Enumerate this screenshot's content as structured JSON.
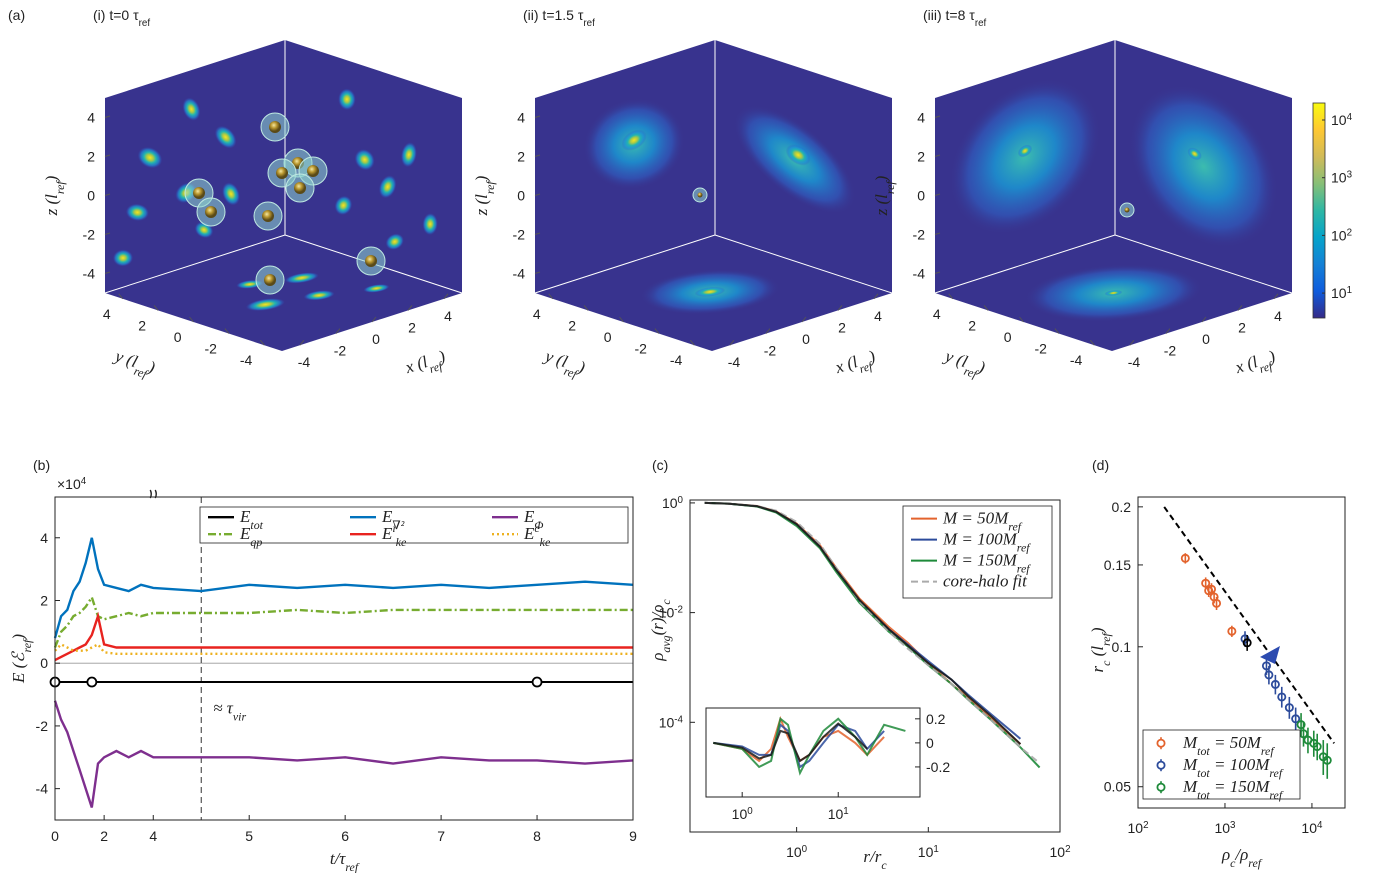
{
  "chart_data": [
    {
      "type": "volume",
      "panel_label": "(a)",
      "title": "(i) t=0  τ_{ref}",
      "face_color": "#38338e",
      "xlabel": "x (l_{ref})",
      "ylabel": "y (l_{ref})",
      "zlabel": "z (l_{ref})",
      "xlim": [
        -5,
        5
      ],
      "ylim": [
        -5,
        5
      ],
      "zlim": [
        -5,
        5
      ],
      "xticks": [
        -4,
        -2,
        0,
        2,
        4
      ],
      "yticks": [
        -4,
        -2,
        0,
        2,
        4
      ],
      "zticks": [
        -4,
        -2,
        0,
        2,
        4
      ]
    },
    {
      "type": "volume",
      "title": "(ii) t=1.5  τ_{ref}",
      "face_color": "#38338e",
      "xlabel": "x (l_{ref})",
      "ylabel": "y (l_{ref})",
      "zlabel": "z (l_{ref})",
      "xlim": [
        -5,
        5
      ],
      "ylim": [
        -5,
        5
      ],
      "zlim": [
        -5,
        5
      ],
      "xticks": [
        -4,
        -2,
        0,
        2,
        4
      ],
      "yticks": [
        -4,
        -2,
        0,
        2,
        4
      ],
      "zticks": [
        -4,
        -2,
        0,
        2,
        4
      ]
    },
    {
      "type": "volume",
      "title": "(iii) t=8  τ_{ref}",
      "face_color": "#38338e",
      "xlabel": "x (l_{ref})",
      "ylabel": "y (l_{ref})",
      "zlabel": "z (l_{ref})",
      "xlim": [
        -5,
        5
      ],
      "ylim": [
        -5,
        5
      ],
      "zlim": [
        -5,
        5
      ],
      "xticks": [
        -4,
        -2,
        0,
        2,
        4
      ],
      "yticks": [
        -4,
        -2,
        0,
        2,
        4
      ],
      "zticks": [
        -4,
        -2,
        0,
        2,
        4
      ],
      "colorbar": {
        "scale": "log",
        "lim": [
          3.7,
          19700
        ],
        "ticks": [
          {
            "value": 10,
            "label": "10^{1}"
          },
          {
            "value": 100,
            "label": "10^{2}"
          },
          {
            "value": 1000,
            "label": "10^{3}"
          },
          {
            "value": 10000,
            "label": "10^{4}"
          }
        ],
        "colors": [
          "#352a87",
          "#0f5cdd",
          "#1481d6",
          "#06a4ca",
          "#2eb7a4",
          "#87bf77",
          "#d1bb59",
          "#fec832",
          "#f9fb0e"
        ]
      }
    },
    {
      "type": "line",
      "panel_label": "(b)",
      "xlabel": "t/τ_{ref}",
      "ylabel": "E (ℰ_{ref})",
      "axis_multiplier": "×10^{4}",
      "xlim": [
        0,
        9
      ],
      "xbreak": 4,
      "xticks": [
        0,
        2,
        4,
        5,
        6,
        7,
        8,
        9
      ],
      "ylim": [
        -5,
        5.3
      ],
      "yticks": [
        4,
        2,
        0,
        -2,
        -4
      ],
      "zeroline": true,
      "vline": 4.5,
      "vline_label": "≈ τ_{vir}",
      "markers": [
        0,
        1.5,
        8
      ],
      "x": [
        0,
        0.25,
        0.5,
        0.75,
        1,
        1.25,
        1.5,
        1.75,
        2,
        2.5,
        3,
        3.5,
        4,
        4.5,
        5,
        5.5,
        6,
        6.5,
        7,
        7.5,
        8,
        8.5,
        9
      ],
      "series": [
        {
          "name": "E_{tot}",
          "color": "#000000",
          "linestyle": "-",
          "values": [
            -0.6,
            -0.6,
            -0.6,
            -0.6,
            -0.6,
            -0.6,
            -0.6,
            -0.6,
            -0.6,
            -0.6,
            -0.6,
            -0.6,
            -0.6,
            -0.6,
            -0.6,
            -0.6,
            -0.6,
            -0.6,
            -0.6,
            -0.6,
            -0.6,
            -0.6,
            -0.6
          ]
        },
        {
          "name": "E_{∇²}",
          "color": "#0072bd",
          "linestyle": "-",
          "values": [
            0.8,
            1.5,
            1.7,
            2.3,
            2.6,
            3.2,
            4.0,
            3.0,
            2.5,
            2.4,
            2.3,
            2.5,
            2.4,
            2.3,
            2.5,
            2.4,
            2.5,
            2.4,
            2.5,
            2.4,
            2.5,
            2.6,
            2.5
          ]
        },
        {
          "name": "E_{Φ}",
          "color": "#7e2f8e",
          "linestyle": "-",
          "values": [
            -1.2,
            -1.8,
            -2.2,
            -2.8,
            -3.4,
            -4.0,
            -4.6,
            -3.2,
            -3.0,
            -2.8,
            -3.0,
            -2.8,
            -3.0,
            -3.0,
            -3.0,
            -3.1,
            -3.0,
            -3.2,
            -3.0,
            -3.1,
            -3.1,
            -3.2,
            -3.1
          ]
        },
        {
          "name": "E_{qp}",
          "color": "#77ac30",
          "linestyle": "-.",
          "values": [
            0.5,
            1.0,
            1.2,
            1.5,
            1.6,
            1.8,
            2.1,
            1.5,
            1.4,
            1.5,
            1.6,
            1.5,
            1.6,
            1.6,
            1.6,
            1.7,
            1.6,
            1.7,
            1.7,
            1.7,
            1.7,
            1.7,
            1.7
          ]
        },
        {
          "name": "E^{i}_{ke}",
          "color": "#e8231f",
          "linestyle": "-",
          "values": [
            0.1,
            0.2,
            0.3,
            0.4,
            0.5,
            0.6,
            0.9,
            1.5,
            0.6,
            0.5,
            0.5,
            0.5,
            0.5,
            0.5,
            0.5,
            0.5,
            0.5,
            0.5,
            0.5,
            0.5,
            0.5,
            0.5,
            0.5
          ]
        },
        {
          "name": "E^{c}_{ke}",
          "color": "#edb120",
          "linestyle": ":",
          "values": [
            0.4,
            0.6,
            0.5,
            0.4,
            0.4,
            0.4,
            0.5,
            0.6,
            0.35,
            0.3,
            0.3,
            0.3,
            0.3,
            0.3,
            0.3,
            0.3,
            0.3,
            0.3,
            0.3,
            0.3,
            0.3,
            0.3,
            0.3
          ]
        }
      ]
    },
    {
      "type": "line",
      "panel_label": "(c)",
      "xlabel": "r/r_{c}",
      "ylabel": "ρ_{avg}(r)/ρ_{c}",
      "xscale": "log",
      "yscale": "log",
      "xlim": [
        0.155,
        100
      ],
      "ylim": [
        1e-06,
        1.13
      ],
      "xticks": [
        {
          "value": 1,
          "label": "10^{0}"
        },
        {
          "value": 10,
          "label": "10^{1}"
        },
        {
          "value": 100,
          "label": "10^{2}"
        }
      ],
      "yticks": [
        {
          "value": 1,
          "label": "10^{0}"
        },
        {
          "value": 0.01,
          "label": "10^{-2}"
        },
        {
          "value": 0.0001,
          "label": "10^{-4}"
        }
      ],
      "x": [
        0.2,
        0.3,
        0.5,
        0.7,
        1,
        1.5,
        2,
        3,
        5,
        7,
        10,
        15,
        20,
        30,
        50,
        70
      ],
      "series": [
        {
          "name": "M = 50M_{ref}",
          "color": "#e3632d",
          "linestyle": "-",
          "values": [
            1,
            0.97,
            0.88,
            0.7,
            0.42,
            0.17,
            0.065,
            0.018,
            0.0055,
            0.0028,
            0.0012,
            0.0005,
            0.00028,
            0.00012,
            4e-05,
            null
          ]
        },
        {
          "name": "M = 100M_{ref}",
          "color": "#2c4b9b",
          "linestyle": "-",
          "values": [
            1,
            0.97,
            0.87,
            0.68,
            0.4,
            0.16,
            0.06,
            0.016,
            0.005,
            0.0026,
            0.0013,
            0.0006,
            0.00032,
            0.00014,
            5e-05,
            null
          ]
        },
        {
          "name": "M = 150M_{ref}",
          "color": "#1e8a3a",
          "linestyle": "-",
          "values": [
            1,
            0.97,
            0.86,
            0.67,
            0.38,
            0.15,
            0.055,
            0.015,
            0.0045,
            0.0024,
            0.0011,
            0.0005,
            0.00026,
            0.00011,
            3.5e-05,
            1.5e-05
          ]
        },
        {
          "name": "core-halo fit",
          "color": "#aaaaaa",
          "linestyle": "--",
          "values": [
            1,
            0.97,
            0.88,
            0.72,
            0.45,
            0.18,
            0.065,
            0.016,
            0.0045,
            0.0022,
            0.0011,
            0.0005,
            0.00026,
            0.00011,
            3.5e-05,
            1.8e-05
          ]
        },
        {
          "color": "#1a1a1a",
          "linestyle": "-",
          "values": [
            1,
            0.97,
            0.87,
            0.69,
            0.41,
            0.16,
            0.06,
            0.017,
            0.005,
            0.0025,
            0.0012,
            0.0006,
            0.0003,
            0.00013,
            4e-05,
            null
          ]
        }
      ]
    },
    {
      "type": "inset",
      "xscale": "log",
      "xlim": [
        0.42,
        71
      ],
      "ylim": [
        -0.45,
        0.29
      ],
      "xticks": [
        {
          "value": 1,
          "label": "10^{0}"
        },
        {
          "value": 10,
          "label": "10^{1}"
        }
      ],
      "yticks": [
        0.2,
        0,
        -0.2
      ],
      "x": [
        0.5,
        1,
        1.5,
        2,
        2.5,
        3,
        4,
        5,
        7,
        10,
        15,
        20,
        30,
        50
      ],
      "series": [
        {
          "color": "#e3632d",
          "values": [
            0,
            -0.05,
            -0.15,
            -0.05,
            0.2,
            0.05,
            -0.15,
            -0.1,
            0.05,
            0.1,
            0,
            -0.1,
            0.05,
            null
          ]
        },
        {
          "color": "#2c4b9b",
          "values": [
            0,
            -0.03,
            -0.1,
            -0.1,
            0.15,
            0.1,
            -0.2,
            -0.15,
            0,
            0.15,
            0.1,
            -0.05,
            0.1,
            null
          ]
        },
        {
          "color": "#1e8a3a",
          "values": [
            0,
            -0.05,
            -0.2,
            -0.15,
            0.2,
            0.15,
            -0.25,
            -0.1,
            0.1,
            0.2,
            0.05,
            -0.1,
            0.15,
            0.1
          ]
        },
        {
          "color": "#1a1a1a",
          "values": [
            0,
            -0.04,
            -0.13,
            -0.1,
            0.1,
            0.08,
            -0.15,
            -0.1,
            0.05,
            0.16,
            0.05,
            -0.05,
            null,
            null
          ]
        }
      ]
    },
    {
      "type": "scatter",
      "panel_label": "(d)",
      "xlabel": "ρ_{c}/ρ_{ref}",
      "ylabel": "r_{c} (l_{ref})",
      "xscale": "log",
      "yscale": "log",
      "xlim": [
        100,
        24000
      ],
      "ylim": [
        0.045,
        0.21
      ],
      "xticks": [
        {
          "value": 100,
          "label": "10^{2}"
        },
        {
          "value": 1000,
          "label": "10^{3}"
        },
        {
          "value": 10000,
          "label": "10^{4}"
        }
      ],
      "yticks": [
        0.05,
        0.1,
        0.15,
        0.2
      ],
      "fit": {
        "color": "#000000",
        "x": [
          200,
          18000
        ],
        "values": [
          0.2,
          0.062
        ]
      },
      "series": [
        {
          "name": "M_{tot} = 50M_{ref}",
          "color": "#e3632d",
          "x": [
            350,
            600,
            650,
            700,
            750,
            800,
            1200
          ],
          "values": [
            0.155,
            0.137,
            0.132,
            0.133,
            0.128,
            0.124,
            0.108
          ],
          "errors": [
            0.004,
            0.004,
            0.004,
            0.004,
            0.004,
            0.004,
            0.003
          ]
        },
        {
          "name": "M_{tot} = 100M_{ref}",
          "color": "#2c4b9b",
          "x": [
            1700,
            3000,
            3200,
            3800,
            4500,
            5500,
            6500
          ],
          "values": [
            0.104,
            0.091,
            0.087,
            0.083,
            0.078,
            0.074,
            0.07
          ],
          "errors": [
            0.004,
            0.004,
            0.004,
            0.004,
            0.004,
            0.004,
            0.004
          ]
        },
        {
          "name": "M_{tot} = 150M_{ref}",
          "color": "#1e8a3a",
          "x": [
            7500,
            8000,
            9000,
            10500,
            11500,
            13500,
            15000
          ],
          "values": [
            0.068,
            0.065,
            0.063,
            0.062,
            0.061,
            0.058,
            0.057
          ],
          "errors": [
            0.004,
            0.004,
            0.004,
            0.004,
            0.004,
            0.005,
            0.005
          ]
        },
        {
          "color": "#000000",
          "x": [
            1800
          ],
          "values": [
            0.102
          ],
          "errors": [
            0.004
          ]
        }
      ]
    }
  ]
}
